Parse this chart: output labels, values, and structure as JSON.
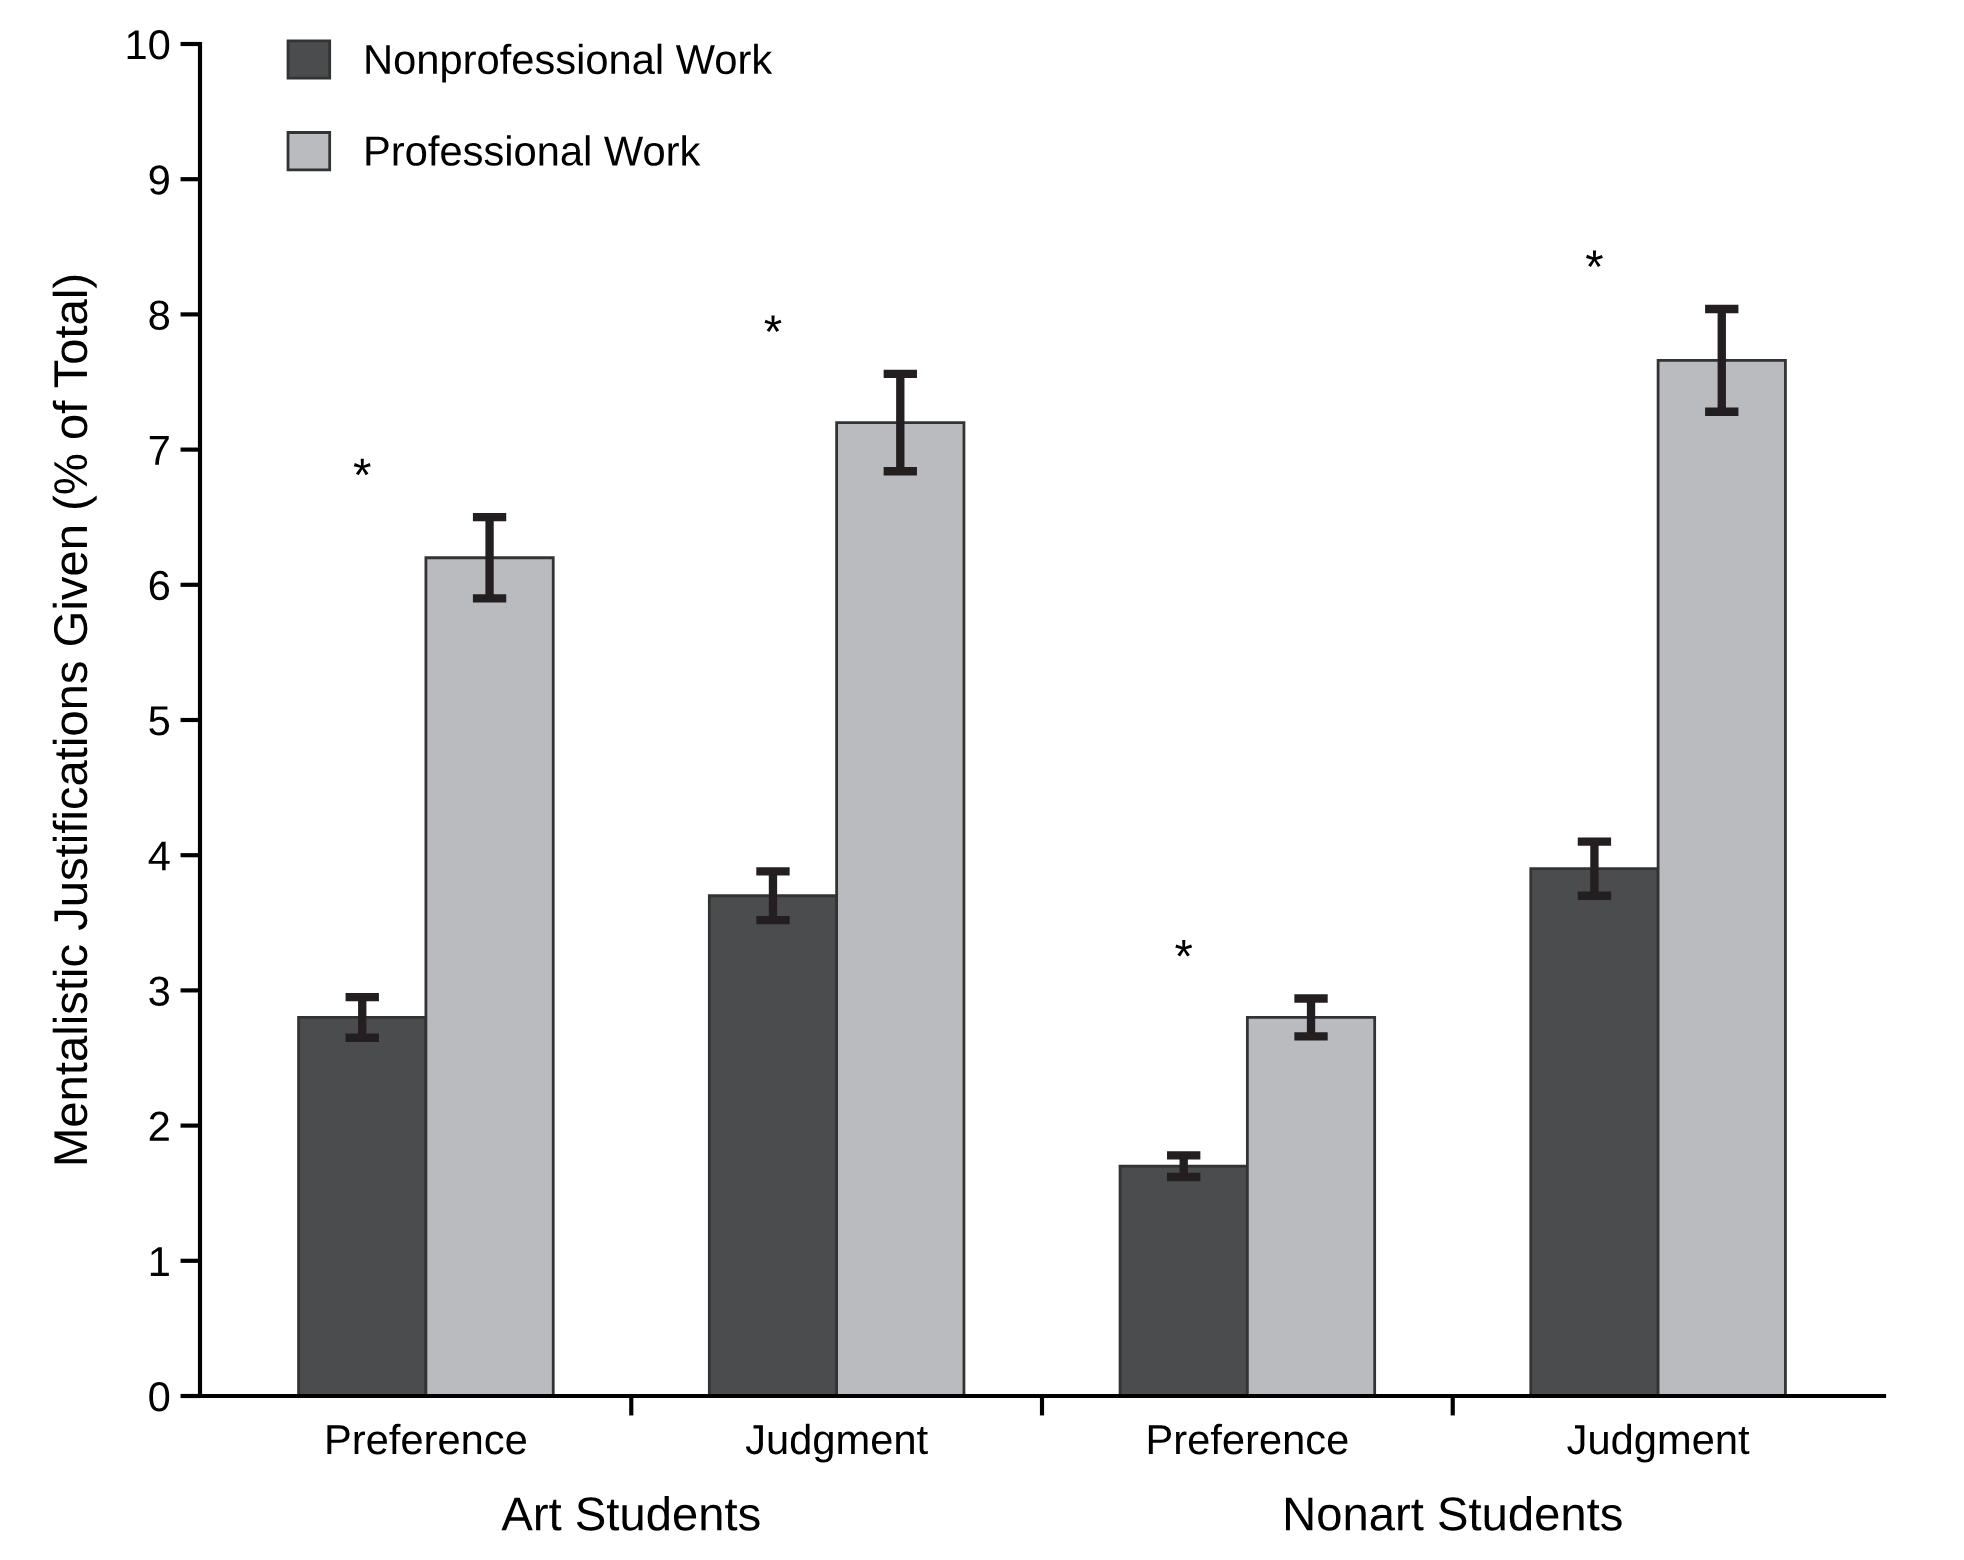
{
  "chart_data": {
    "type": "bar",
    "categories": [
      "Preference",
      "Judgment",
      "Preference",
      "Judgment"
    ],
    "series": [
      {
        "name": "Nonprofessional Work",
        "color": "#4b4c4e",
        "values": [
          2.8,
          3.7,
          1.7,
          3.9
        ],
        "errors": [
          0.15,
          0.18,
          0.08,
          0.2
        ]
      },
      {
        "name": "Professional Work",
        "color": "#babbbe",
        "values": [
          6.2,
          7.2,
          2.8,
          7.66
        ],
        "errors": [
          0.3,
          0.36,
          0.14,
          0.38
        ]
      }
    ],
    "ylabel": "Mentalistic Justifications Given (% of Total)",
    "ylim": [
      0,
      10
    ],
    "yticks": [
      0,
      1,
      2,
      3,
      4,
      5,
      6,
      7,
      8,
      9,
      10
    ],
    "annotations": [
      "*",
      "*",
      "*",
      "*",
      "Art Students",
      "Nonart Students"
    ],
    "legend": "top left",
    "grid": false
  }
}
